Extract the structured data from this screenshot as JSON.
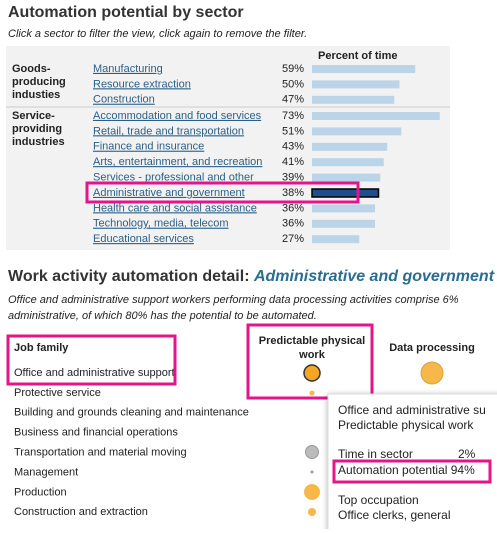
{
  "title": "Automation potential by sector",
  "subtitle": "Click a sector to filter the view, click again to remove the filter.",
  "column_header": "Percent of time",
  "groups": [
    {
      "name": "Goods-\nproducing\nindusties",
      "sectors": [
        {
          "name": "Manufacturing",
          "percent": 59,
          "label": "59%"
        },
        {
          "name": "Resource extraction",
          "percent": 50,
          "label": "50%"
        },
        {
          "name": "Construction",
          "percent": 47,
          "label": "47%"
        }
      ]
    },
    {
      "name": "Service-\nproviding\nindustries",
      "sectors": [
        {
          "name": "Accommodation and food services",
          "percent": 73,
          "label": "73%"
        },
        {
          "name": "Retail, trade and transportation",
          "percent": 51,
          "label": "51%"
        },
        {
          "name": "Finance and insurance",
          "percent": 43,
          "label": "43%"
        },
        {
          "name": "Arts, entertainment, and recreation",
          "percent": 41,
          "label": "41%"
        },
        {
          "name": "Services - professional and other",
          "percent": 39,
          "label": "39%"
        },
        {
          "name": "Administrative and government",
          "percent": 38,
          "label": "38%",
          "selected": true
        },
        {
          "name": "Health care and social assistance",
          "percent": 36,
          "label": "36%"
        },
        {
          "name": "Technology, media, telecom",
          "percent": 36,
          "label": "36%"
        },
        {
          "name": "Educational services",
          "percent": 27,
          "label": "27%"
        }
      ]
    }
  ],
  "detail": {
    "heading": "Work activity automation detail: ",
    "sector": "Administrative and government",
    "description": [
      "Office and administrative support workers performing data processing activities comprise 6%",
      "administrative, of which 80% has the potential to be automated."
    ],
    "columns": [
      "Job family",
      "Predictable physical work",
      "Data processing"
    ],
    "rows": [
      "Office and administrative support",
      "Protective service",
      "Building and grounds cleaning and maintenance",
      "Business and financial operations",
      "Transportation and material moving",
      "Management",
      "Production",
      "Construction and extraction"
    ]
  },
  "tooltip": {
    "title": "Office and administrative su",
    "activity": "Predictable physical work",
    "time_label": "Time in sector",
    "time_value": "2%",
    "automation": "Automation potential 94%",
    "occupation_label": "Top occupation",
    "occupation": "Office clerks, general"
  }
}
